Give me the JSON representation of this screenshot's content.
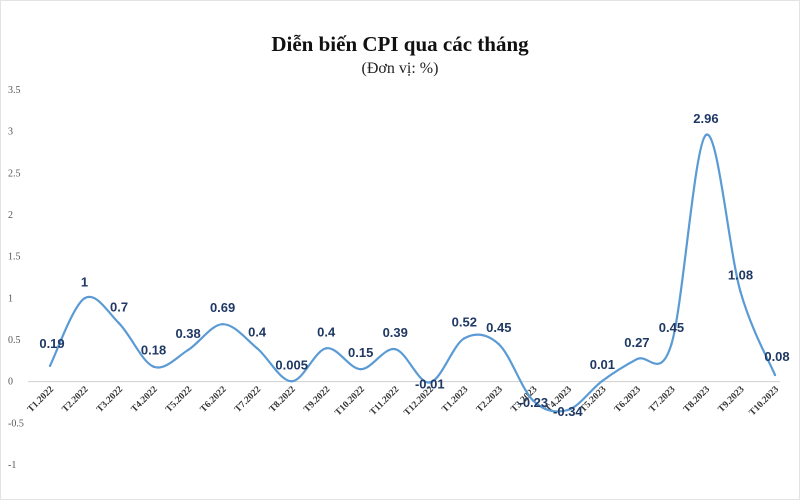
{
  "chart_data": {
    "type": "line",
    "title": "Diễn biến CPI qua các tháng",
    "subtitle": "(Đơn vị: %)",
    "categories": [
      "T1.2022",
      "T2.2022",
      "T3.2022",
      "T4.2022",
      "T5.2022",
      "T6.2022",
      "T7.2022",
      "T8.2022",
      "T9.2022",
      "T10.2022",
      "T11.2022",
      "T12.2022",
      "T1.2023",
      "T2.2023",
      "T3.2023",
      "T4.2023",
      "T5.2023",
      "T6.2023",
      "T7.2023",
      "T8.2023",
      "T9.2023",
      "T10.2023"
    ],
    "values": [
      0.19,
      1,
      0.7,
      0.18,
      0.38,
      0.69,
      0.4,
      0.005,
      0.4,
      0.15,
      0.39,
      -0.01,
      0.52,
      0.45,
      -0.23,
      -0.34,
      0.01,
      0.27,
      0.45,
      2.96,
      1.08,
      0.08
    ],
    "data_labels": [
      "0.19",
      "1",
      "0.7",
      "0.18",
      "0.38",
      "0.69",
      "0.4",
      "0.005",
      "0.4",
      "0.15",
      "0.39",
      "-0.01",
      "0.52",
      "0.45",
      "-0.23",
      "-0.34",
      "0.01",
      "0.27",
      "0.45",
      "2.96",
      "1.08",
      "0.08"
    ],
    "y_ticks": [
      "-1",
      "-0.5",
      "0",
      "0.5",
      "1",
      "1.5",
      "2",
      "2.5",
      "3",
      "3.5"
    ],
    "ylim": [
      -1,
      3.5
    ],
    "grid": false,
    "legend": "none",
    "line_color": "#5b9bd5",
    "label_color": "#1f3864"
  }
}
